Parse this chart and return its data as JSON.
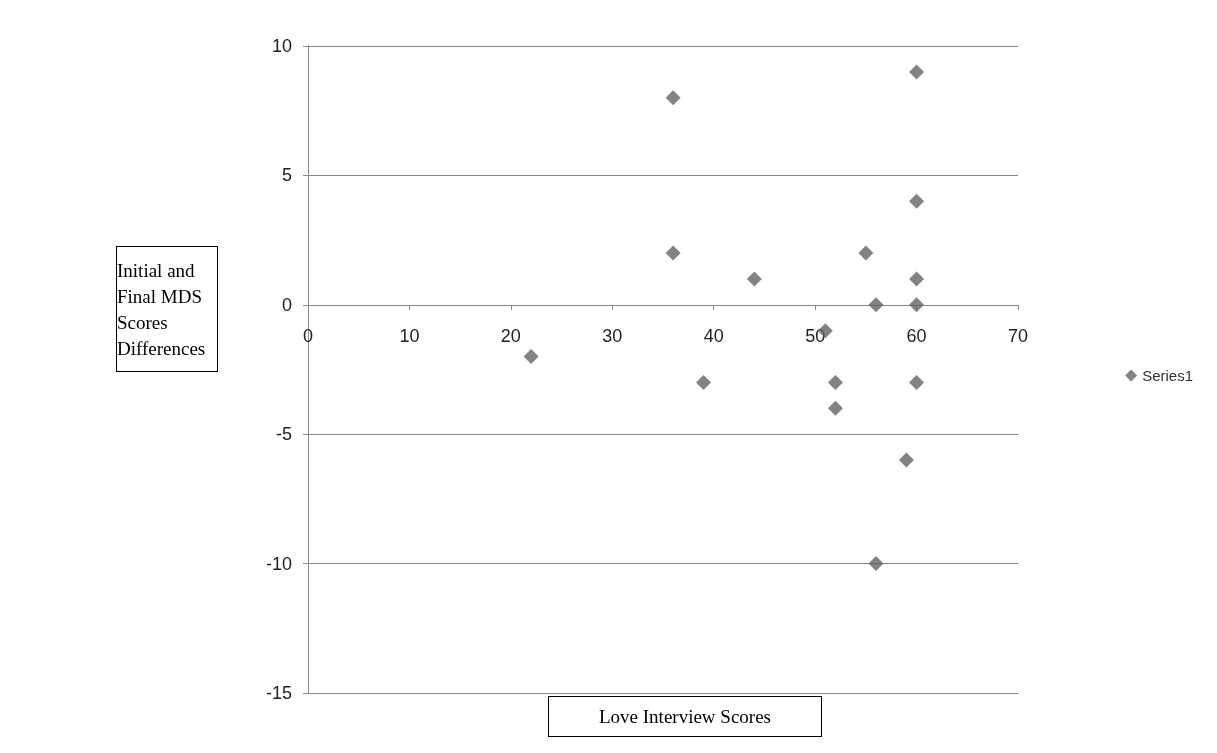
{
  "chart_data": {
    "type": "scatter",
    "xlabel": "Love Interview Scores",
    "ylabel": "Initial and Final MDS Scores Differences",
    "x": [
      22,
      36,
      36,
      39,
      44,
      51,
      52,
      52,
      55,
      56,
      56,
      59,
      60,
      60,
      60,
      60,
      60
    ],
    "series": [
      {
        "name": "Series1",
        "color": "#646464",
        "values": [
          -2,
          8,
          2,
          -3,
          1,
          -1,
          -3,
          -4,
          2,
          0,
          -10,
          -6,
          9,
          4,
          1,
          0,
          -3
        ]
      }
    ],
    "xlim": [
      0,
      70
    ],
    "xticks": [
      0,
      10,
      20,
      30,
      40,
      50,
      60,
      70
    ],
    "ylim": [
      -15,
      10
    ],
    "yticks": [
      -15,
      -10,
      -5,
      0,
      5,
      10
    ],
    "grid": "y",
    "legend": "right",
    "marker": "diamond"
  }
}
